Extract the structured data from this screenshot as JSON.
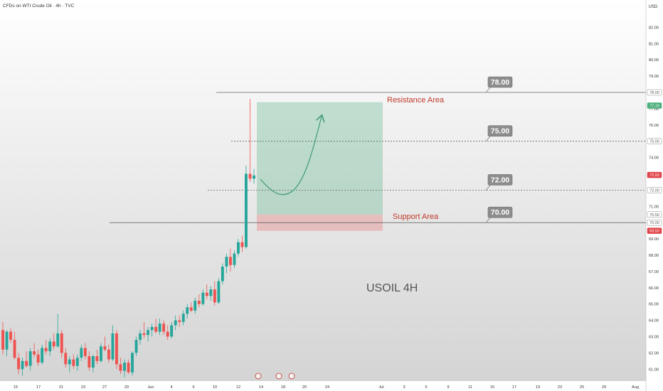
{
  "header": {
    "title": "CFDs on WTI Crude Oil · 4h · TVC"
  },
  "chart_data": {
    "type": "candlestick",
    "currency": "USD",
    "symbol_label": "USOIL 4H",
    "y_ticks": [
      "82.00",
      "81.00",
      "80.00",
      "79.00",
      "77.00",
      "76.00",
      "74.00",
      "71.00",
      "69.00",
      "68.00",
      "67.00",
      "66.00",
      "65.00",
      "64.00",
      "63.00",
      "62.00",
      "61.00"
    ],
    "ylim": [
      60.5,
      83.5
    ],
    "price_badges": [
      {
        "value": 78.0,
        "label": "78.00",
        "bg": "#ffffff",
        "fg": "#555555",
        "border": "#888888"
      },
      {
        "value": 77.19,
        "label": "77.19",
        "bg": "#4caf7d",
        "fg": "#ffffff",
        "border": "#4caf7d"
      },
      {
        "value": 75.0,
        "label": "75.00",
        "bg": "#ffffff",
        "fg": "#555555",
        "border": "#888888"
      },
      {
        "value": 72.93,
        "label": "72.93",
        "bg": "#e0454a",
        "fg": "#ffffff",
        "border": "#e0454a"
      },
      {
        "value": 72.0,
        "label": "72.00",
        "bg": "#ffffff",
        "fg": "#555555",
        "border": "#888888"
      },
      {
        "value": 70.5,
        "label": "70.50",
        "bg": "#ffffff",
        "fg": "#555555",
        "border": "#888888"
      },
      {
        "value": 70.0,
        "label": "70.00",
        "bg": "#ffffff",
        "fg": "#555555",
        "border": "#888888"
      },
      {
        "value": 69.5,
        "label": "69.50",
        "bg": "#e0454a",
        "fg": "#ffffff",
        "border": "#e0454a"
      }
    ],
    "x_ticks": [
      "15",
      "17",
      "21",
      "23",
      "27",
      "29",
      "Jun",
      "4",
      "6",
      "10",
      "12",
      "14",
      "18",
      "20",
      "24",
      "Jul",
      "3",
      "5",
      "9",
      "11",
      "15",
      "17",
      "19",
      "23",
      "25",
      "29",
      "Aug"
    ],
    "levels": [
      {
        "value": 78.0,
        "label": "78.00",
        "style": "solid"
      },
      {
        "value": 75.0,
        "label": "75.00",
        "style": "dashed"
      },
      {
        "value": 72.0,
        "label": "72.00",
        "style": "dashed"
      },
      {
        "value": 70.0,
        "label": "70.00",
        "style": "solid"
      }
    ],
    "areas": [
      {
        "name": "Resistance Area",
        "top": 77.4,
        "bottom": 70.5,
        "color": "#4caf7d"
      },
      {
        "name": "Support Area",
        "top": 70.5,
        "bottom": 69.5,
        "color": "#e57373"
      }
    ],
    "colors": {
      "up": "#26a69a",
      "down": "#ef5350",
      "label_red": "#c0392b",
      "arrow": "#3d9a72"
    },
    "candles": [
      {
        "o": 63.4,
        "h": 63.9,
        "l": 61.9,
        "c": 62.2
      },
      {
        "o": 62.2,
        "h": 63.4,
        "l": 61.8,
        "c": 63.3
      },
      {
        "o": 63.3,
        "h": 63.5,
        "l": 62.6,
        "c": 62.8
      },
      {
        "o": 62.8,
        "h": 63.3,
        "l": 61.6,
        "c": 61.7
      },
      {
        "o": 61.7,
        "h": 62.0,
        "l": 60.7,
        "c": 61.0
      },
      {
        "o": 61.0,
        "h": 61.7,
        "l": 60.6,
        "c": 61.5
      },
      {
        "o": 61.5,
        "h": 62.1,
        "l": 61.1,
        "c": 61.2
      },
      {
        "o": 61.2,
        "h": 62.3,
        "l": 60.9,
        "c": 62.1
      },
      {
        "o": 62.1,
        "h": 62.6,
        "l": 61.7,
        "c": 61.9
      },
      {
        "o": 61.9,
        "h": 62.2,
        "l": 61.2,
        "c": 61.4
      },
      {
        "o": 61.4,
        "h": 62.5,
        "l": 61.3,
        "c": 62.3
      },
      {
        "o": 62.3,
        "h": 62.8,
        "l": 61.9,
        "c": 62.1
      },
      {
        "o": 62.1,
        "h": 62.9,
        "l": 61.8,
        "c": 62.7
      },
      {
        "o": 62.7,
        "h": 63.2,
        "l": 62.2,
        "c": 62.4
      },
      {
        "o": 62.4,
        "h": 64.4,
        "l": 62.3,
        "c": 63.2
      },
      {
        "o": 63.2,
        "h": 63.4,
        "l": 61.7,
        "c": 62.0
      },
      {
        "o": 62.0,
        "h": 62.3,
        "l": 61.1,
        "c": 61.3
      },
      {
        "o": 61.3,
        "h": 61.8,
        "l": 60.8,
        "c": 61.6
      },
      {
        "o": 61.6,
        "h": 61.9,
        "l": 61.0,
        "c": 61.2
      },
      {
        "o": 61.2,
        "h": 61.9,
        "l": 60.9,
        "c": 61.7
      },
      {
        "o": 61.7,
        "h": 62.5,
        "l": 61.5,
        "c": 62.3
      },
      {
        "o": 62.3,
        "h": 62.6,
        "l": 61.6,
        "c": 61.8
      },
      {
        "o": 61.8,
        "h": 62.1,
        "l": 60.9,
        "c": 61.1
      },
      {
        "o": 61.1,
        "h": 61.9,
        "l": 60.8,
        "c": 61.8
      },
      {
        "o": 61.8,
        "h": 62.2,
        "l": 61.3,
        "c": 61.5
      },
      {
        "o": 61.5,
        "h": 62.6,
        "l": 61.4,
        "c": 62.4
      },
      {
        "o": 62.4,
        "h": 63.0,
        "l": 62.1,
        "c": 62.2
      },
      {
        "o": 62.2,
        "h": 62.5,
        "l": 61.4,
        "c": 61.6
      },
      {
        "o": 61.6,
        "h": 63.7,
        "l": 61.5,
        "c": 63.2
      },
      {
        "o": 63.2,
        "h": 63.4,
        "l": 61.0,
        "c": 61.3
      },
      {
        "o": 61.3,
        "h": 61.7,
        "l": 60.7,
        "c": 60.9
      },
      {
        "o": 60.9,
        "h": 61.6,
        "l": 60.5,
        "c": 61.4
      },
      {
        "o": 61.4,
        "h": 61.6,
        "l": 60.7,
        "c": 60.8
      },
      {
        "o": 60.8,
        "h": 62.1,
        "l": 60.6,
        "c": 62.0
      },
      {
        "o": 62.0,
        "h": 63.0,
        "l": 61.8,
        "c": 62.8
      },
      {
        "o": 62.8,
        "h": 63.4,
        "l": 62.5,
        "c": 63.2
      },
      {
        "o": 63.2,
        "h": 63.9,
        "l": 62.9,
        "c": 63.1
      },
      {
        "o": 63.1,
        "h": 63.6,
        "l": 62.7,
        "c": 63.4
      },
      {
        "o": 63.4,
        "h": 63.8,
        "l": 63.0,
        "c": 63.6
      },
      {
        "o": 63.6,
        "h": 64.1,
        "l": 63.2,
        "c": 63.3
      },
      {
        "o": 63.3,
        "h": 64.1,
        "l": 63.1,
        "c": 63.8
      },
      {
        "o": 63.8,
        "h": 64.0,
        "l": 63.1,
        "c": 63.3
      },
      {
        "o": 63.3,
        "h": 63.7,
        "l": 62.8,
        "c": 63.0
      },
      {
        "o": 63.0,
        "h": 63.9,
        "l": 62.9,
        "c": 63.7
      },
      {
        "o": 63.7,
        "h": 64.3,
        "l": 63.4,
        "c": 64.0
      },
      {
        "o": 64.0,
        "h": 64.3,
        "l": 63.6,
        "c": 63.9
      },
      {
        "o": 63.9,
        "h": 64.6,
        "l": 63.7,
        "c": 64.4
      },
      {
        "o": 64.4,
        "h": 65.0,
        "l": 64.1,
        "c": 64.8
      },
      {
        "o": 64.8,
        "h": 65.1,
        "l": 64.5,
        "c": 64.6
      },
      {
        "o": 64.6,
        "h": 65.4,
        "l": 64.4,
        "c": 65.2
      },
      {
        "o": 65.2,
        "h": 65.6,
        "l": 64.8,
        "c": 65.0
      },
      {
        "o": 65.0,
        "h": 65.9,
        "l": 64.9,
        "c": 65.7
      },
      {
        "o": 65.7,
        "h": 66.2,
        "l": 65.3,
        "c": 65.5
      },
      {
        "o": 65.5,
        "h": 66.1,
        "l": 65.2,
        "c": 65.9
      },
      {
        "o": 65.9,
        "h": 66.4,
        "l": 64.9,
        "c": 65.1
      },
      {
        "o": 65.1,
        "h": 66.6,
        "l": 65.0,
        "c": 66.4
      },
      {
        "o": 66.4,
        "h": 67.5,
        "l": 66.2,
        "c": 67.3
      },
      {
        "o": 67.3,
        "h": 68.1,
        "l": 66.9,
        "c": 67.9
      },
      {
        "o": 67.9,
        "h": 68.4,
        "l": 67.0,
        "c": 67.4
      },
      {
        "o": 67.4,
        "h": 68.3,
        "l": 67.2,
        "c": 68.1
      },
      {
        "o": 68.1,
        "h": 69.0,
        "l": 67.9,
        "c": 68.8
      },
      {
        "o": 68.8,
        "h": 69.2,
        "l": 68.2,
        "c": 68.5
      },
      {
        "o": 68.5,
        "h": 73.5,
        "l": 68.4,
        "c": 73.0
      },
      {
        "o": 73.0,
        "h": 77.6,
        "l": 72.5,
        "c": 72.7
      },
      {
        "o": 72.7,
        "h": 73.3,
        "l": 72.4,
        "c": 72.9
      }
    ],
    "annotations": [
      "Resistance Area",
      "Support Area"
    ]
  }
}
